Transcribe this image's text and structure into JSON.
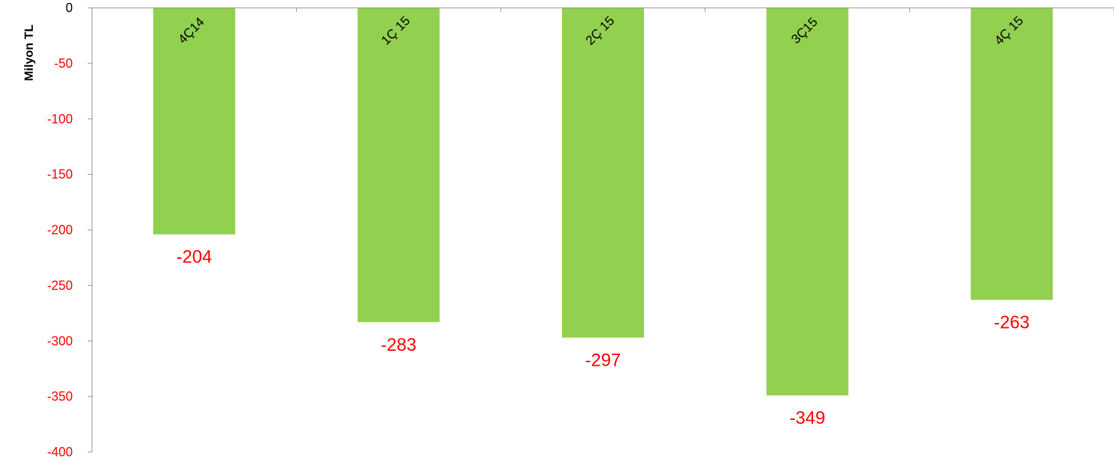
{
  "chart_data": {
    "type": "bar",
    "title": "",
    "xlabel": "",
    "ylabel": "Milyon TL",
    "categories": [
      "4Ç14",
      "1Ç 15",
      "2Ç 15",
      "3Ç15",
      "4Ç 15"
    ],
    "values": [
      -204,
      -283,
      -297,
      -349,
      -263
    ],
    "value_labels": [
      "-204",
      "-283",
      "-297",
      "-349",
      "-263"
    ],
    "ylim": [
      -400,
      0
    ],
    "yticks": [
      0,
      -50,
      -100,
      -150,
      -200,
      -250,
      -300,
      -350,
      -400
    ],
    "ytick_labels": [
      "0",
      "-50",
      "-100",
      "-150",
      "-200",
      "-250",
      "-300",
      "-350",
      "-400"
    ],
    "grid": false,
    "legend": "none",
    "colors": {
      "bar": "#92d050",
      "negative_text": "#ff0000",
      "axis": "#8c8c8c",
      "text": "#000000"
    }
  }
}
